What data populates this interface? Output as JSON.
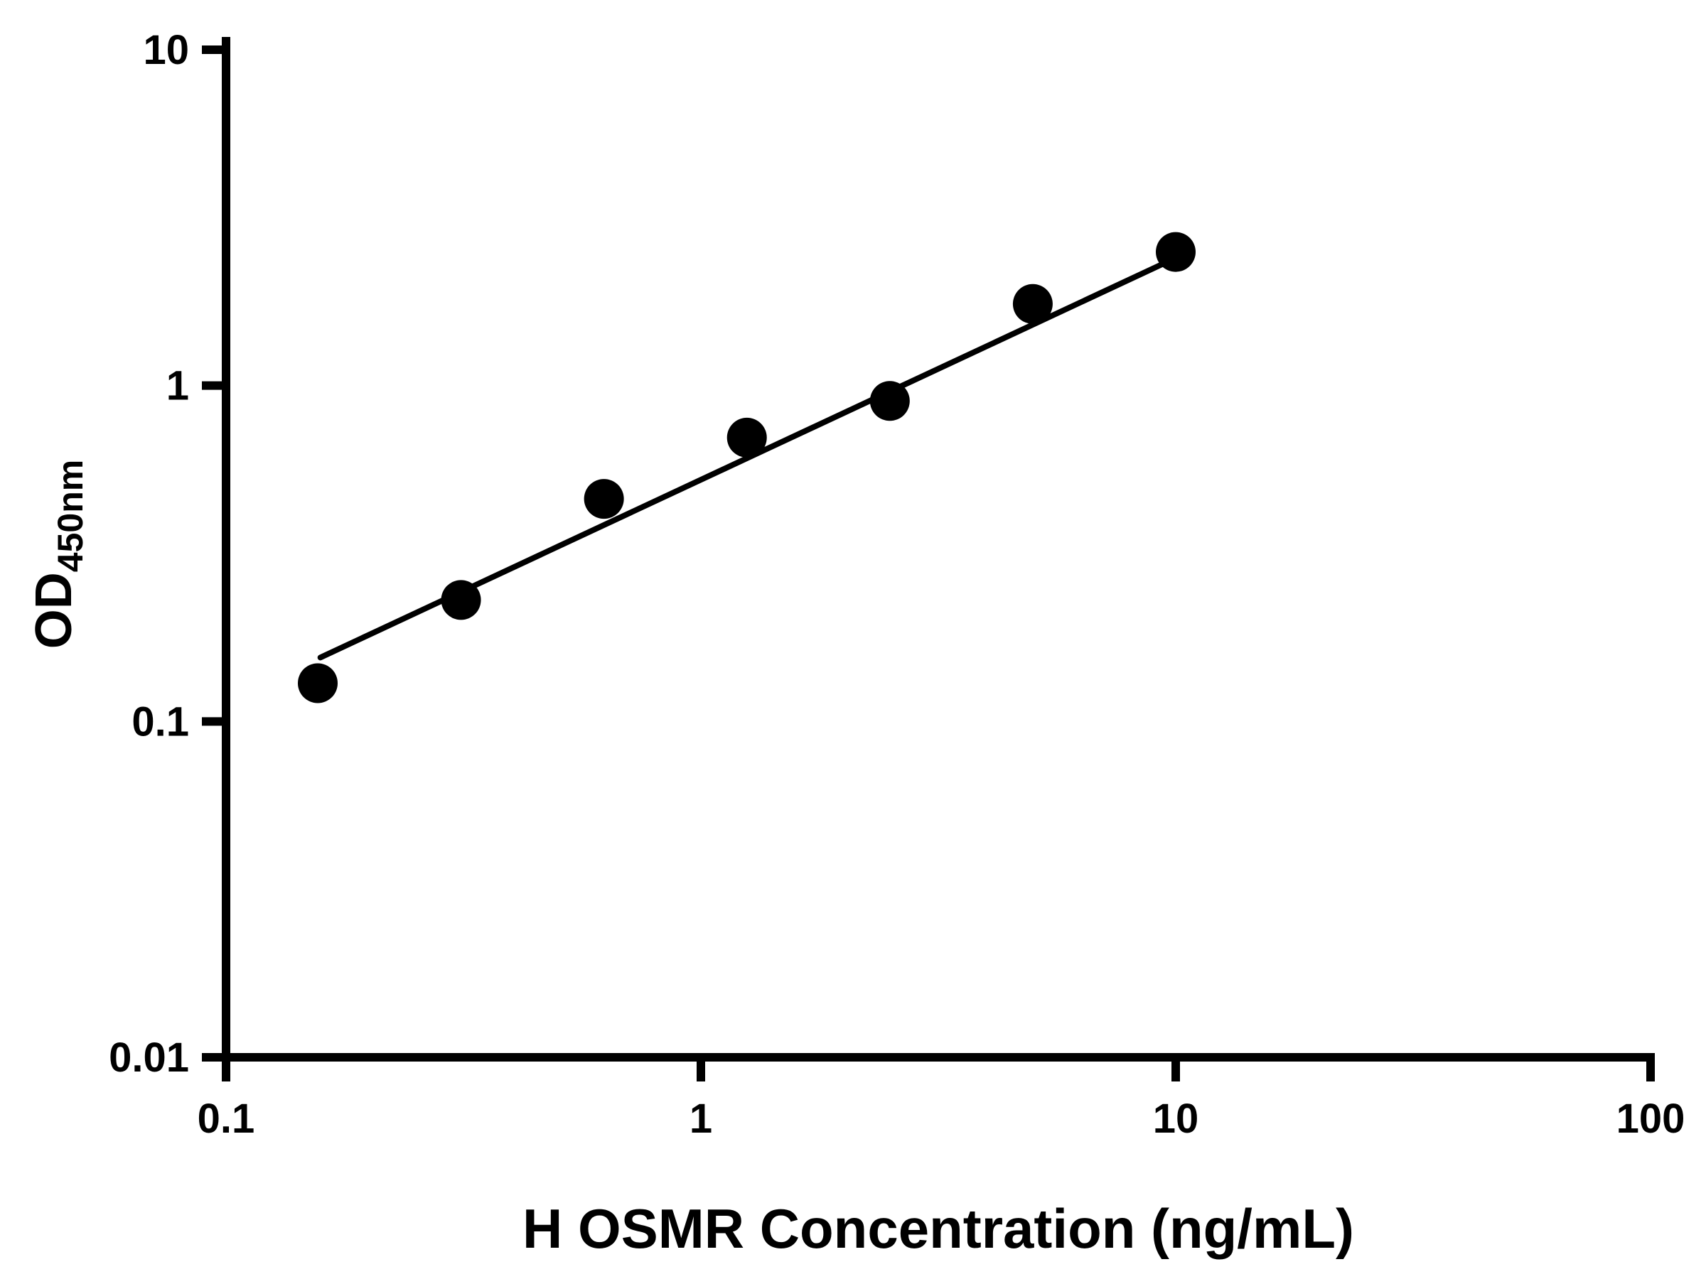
{
  "chart_data": {
    "type": "scatter",
    "title": "",
    "xlabel": "H OSMR Concentration (ng/mL)",
    "ylabel_main": "OD",
    "ylabel_sub": "450nm",
    "x_scale": "log",
    "y_scale": "log",
    "xlim": [
      0.1,
      100
    ],
    "ylim": [
      0.01,
      10
    ],
    "x_tick_values": [
      0.1,
      1,
      10,
      100
    ],
    "x_tick_labels": [
      "0.1",
      "1",
      "10",
      "100"
    ],
    "y_tick_values": [
      0.01,
      0.1,
      1,
      10
    ],
    "y_tick_labels": [
      "0.01",
      "0.1",
      "1",
      "10"
    ],
    "grid": false,
    "legend": "none",
    "marker_color": "#000000",
    "line_color": "#000000",
    "background_color": "#ffffff",
    "points": [
      {
        "x": 0.156,
        "y": 0.13
      },
      {
        "x": 0.3125,
        "y": 0.23
      },
      {
        "x": 0.625,
        "y": 0.46
      },
      {
        "x": 1.25,
        "y": 0.7
      },
      {
        "x": 2.5,
        "y": 0.9
      },
      {
        "x": 5,
        "y": 1.75
      },
      {
        "x": 10,
        "y": 2.5
      }
    ],
    "trendline": {
      "x1": 0.158,
      "y1": 0.155,
      "x2": 10.0,
      "y2": 2.4
    }
  }
}
